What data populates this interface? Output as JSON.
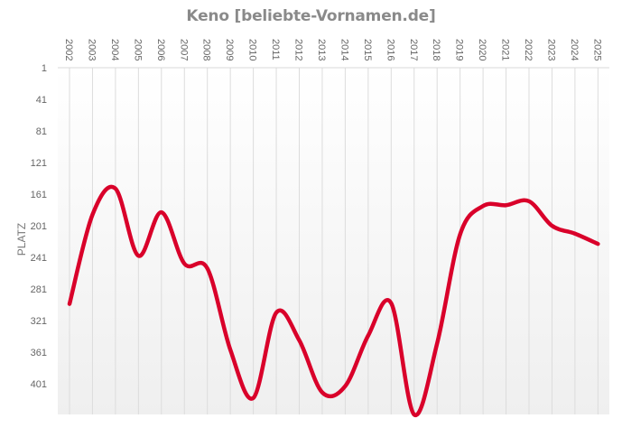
{
  "title": "Keno [beliebte-Vornamen.de]",
  "colors": {
    "line": "#d9002a",
    "grid": "#dcdcdc",
    "title": "#8a8a8a",
    "tick": "#666666"
  },
  "chart_data": {
    "type": "line",
    "title": "Keno [beliebte-Vornamen.de]",
    "xlabel": "",
    "ylabel": "PLATZ",
    "y_inverted": true,
    "ylim": [
      1,
      440
    ],
    "y_ticks": [
      1,
      41,
      81,
      121,
      161,
      201,
      241,
      281,
      321,
      361,
      401
    ],
    "x": [
      "2002",
      "2003",
      "2004",
      "2005",
      "2006",
      "2007",
      "2008",
      "2009",
      "2010",
      "2011",
      "2012",
      "2013",
      "2014",
      "2015",
      "2016",
      "2017",
      "2018",
      "2019",
      "2020",
      "2021",
      "2022",
      "2023",
      "2024",
      "2025"
    ],
    "series": [
      {
        "name": "Keno",
        "values": [
          300,
          187,
          154,
          239,
          184,
          249,
          255,
          358,
          419,
          311,
          346,
          412,
          404,
          340,
          299,
          440,
          350,
          212,
          176,
          175,
          170,
          201,
          211,
          224
        ]
      }
    ],
    "grid": {
      "vertical": true,
      "horizontal": false
    },
    "legend": "none"
  }
}
